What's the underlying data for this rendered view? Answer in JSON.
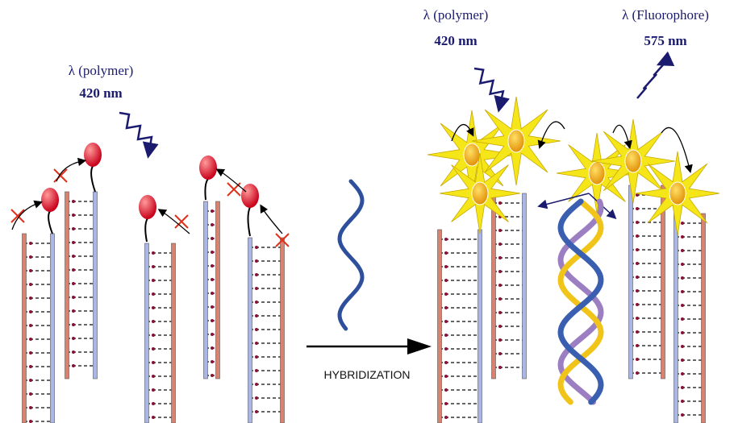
{
  "left_panel": {
    "excitation": {
      "label": "λ (polymer)",
      "wavelength": "420 nm"
    }
  },
  "right_panel": {
    "excitation": {
      "label": "λ (polymer)",
      "wavelength": "420 nm"
    },
    "emission": {
      "label": "λ (Fluorophore)",
      "wavelength": "575 nm"
    }
  },
  "arrow": {
    "label": "HYBRIDIZATION"
  }
}
